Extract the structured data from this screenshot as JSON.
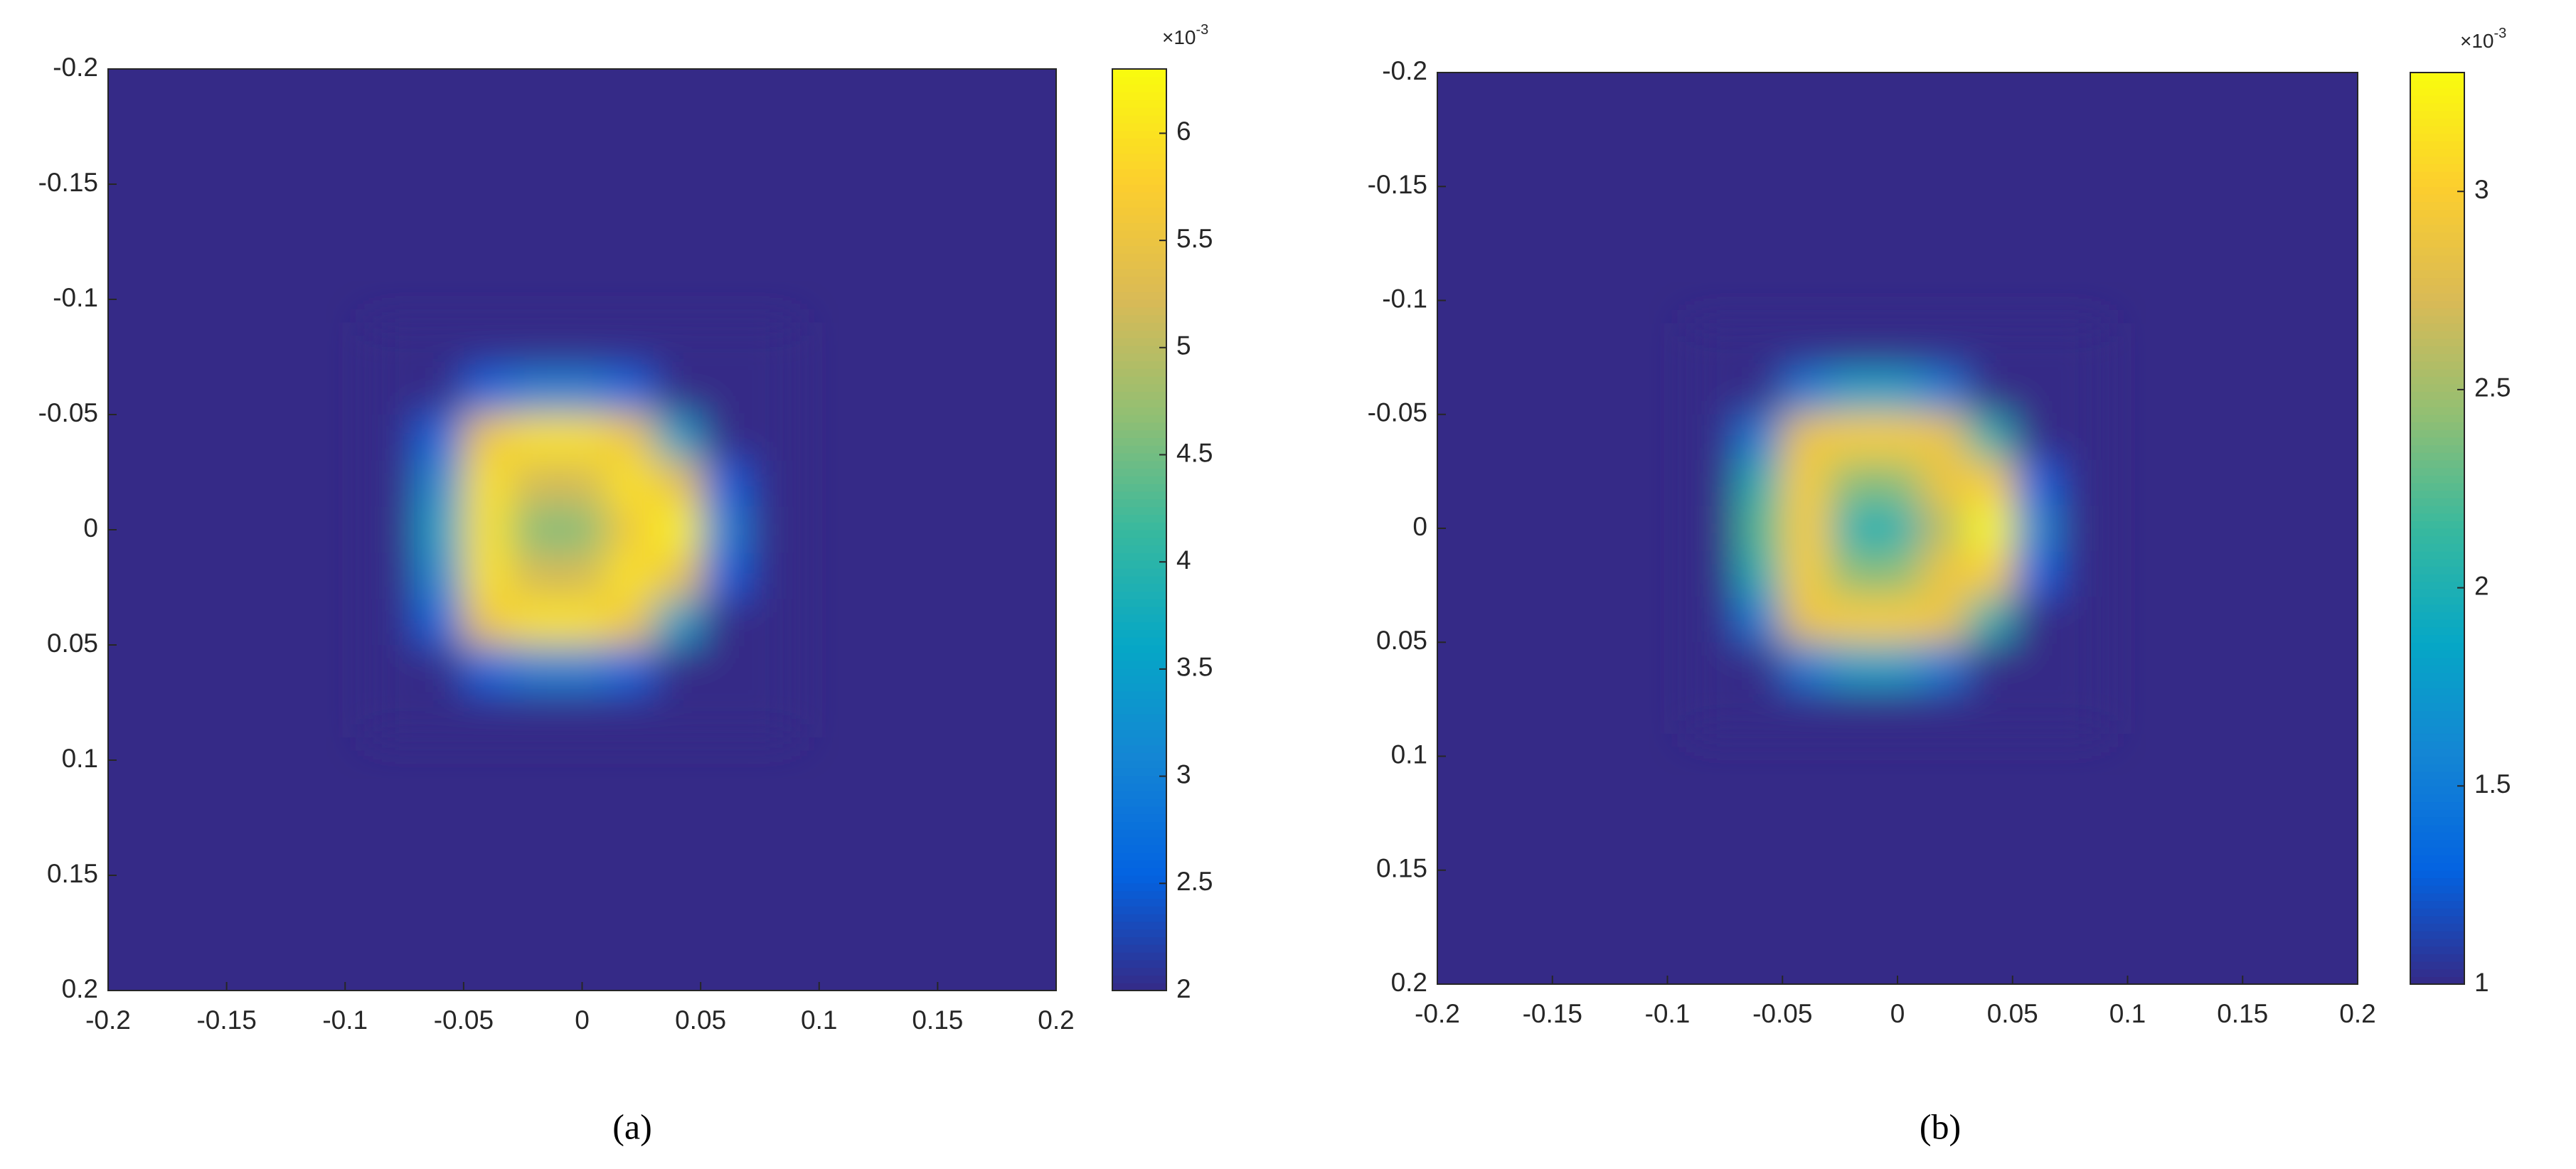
{
  "chart_data": [
    {
      "type": "heatmap",
      "caption": "(a)",
      "xlim": [
        -0.2,
        0.2
      ],
      "ylim": [
        -0.2,
        0.2
      ],
      "y_inverted": true,
      "xticks": [
        -0.2,
        -0.15,
        -0.1,
        -0.05,
        0,
        0.05,
        0.1,
        0.15,
        0.2
      ],
      "yticks": [
        -0.2,
        -0.15,
        -0.1,
        -0.05,
        0,
        0.05,
        0.1,
        0.15,
        0.2
      ],
      "x": [
        -0.08,
        -0.06,
        -0.04,
        -0.02,
        0,
        0.02,
        0.04,
        0.06,
        0.08
      ],
      "y": [
        -0.08,
        -0.06,
        -0.04,
        -0.02,
        0,
        0.02,
        0.04,
        0.06,
        0.08
      ],
      "z": [
        [
          2,
          2,
          2,
          2,
          2,
          2,
          2,
          2,
          2
        ],
        [
          2,
          2,
          2.6,
          3.0,
          3.0,
          2.6,
          2,
          2,
          2
        ],
        [
          2,
          2.6,
          5.6,
          6.0,
          6.0,
          5.6,
          3.5,
          2,
          2
        ],
        [
          2,
          3.2,
          6.0,
          5.2,
          5.2,
          6.0,
          5.5,
          2.5,
          2
        ],
        [
          2,
          3.5,
          6.0,
          4.6,
          4.6,
          5.6,
          6.2,
          3.0,
          2
        ],
        [
          2,
          3.2,
          6.0,
          5.2,
          5.2,
          6.0,
          5.5,
          2.5,
          2
        ],
        [
          2,
          2.6,
          5.6,
          6.0,
          6.0,
          5.6,
          3.5,
          2,
          2
        ],
        [
          2,
          2,
          2.6,
          3.0,
          3.0,
          2.6,
          2,
          2,
          2
        ],
        [
          2,
          2,
          2,
          2,
          2,
          2,
          2,
          2,
          2
        ]
      ],
      "clim": [
        2,
        6.3
      ],
      "cticks": [
        2,
        2.5,
        3,
        3.5,
        4,
        4.5,
        5,
        5.5,
        6
      ],
      "colorbar_multiplier": "×10",
      "colorbar_exponent": "-3",
      "colormap": [
        "#352a87",
        "#0363e1",
        "#1485d4",
        "#06a7c6",
        "#38b99e",
        "#92bf73",
        "#d9ba56",
        "#fcce2e",
        "#f9fb0e"
      ]
    },
    {
      "type": "heatmap",
      "caption": "(b)",
      "xlim": [
        -0.2,
        0.2
      ],
      "ylim": [
        -0.2,
        0.2
      ],
      "y_inverted": true,
      "xticks": [
        -0.2,
        -0.15,
        -0.1,
        -0.05,
        0,
        0.05,
        0.1,
        0.15,
        0.2
      ],
      "yticks": [
        -0.2,
        -0.15,
        -0.1,
        -0.05,
        0,
        0.05,
        0.1,
        0.15,
        0.2
      ],
      "x": [
        -0.08,
        -0.06,
        -0.04,
        -0.02,
        0,
        0.02,
        0.04,
        0.06,
        0.08
      ],
      "y": [
        -0.08,
        -0.06,
        -0.04,
        -0.02,
        0,
        0.02,
        0.04,
        0.06,
        0.08
      ],
      "z": [
        [
          1,
          1,
          1,
          1,
          1,
          1,
          1,
          1,
          1
        ],
        [
          1,
          1,
          1.5,
          1.8,
          1.8,
          1.5,
          1,
          1,
          1
        ],
        [
          1,
          1.5,
          2.9,
          3.0,
          3.0,
          2.9,
          2.0,
          1,
          1
        ],
        [
          1,
          2.0,
          3.0,
          2.4,
          2.4,
          2.9,
          3.0,
          1.3,
          1
        ],
        [
          1,
          2.2,
          3.0,
          2.0,
          2.0,
          2.6,
          3.3,
          1.6,
          1
        ],
        [
          1,
          2.0,
          3.0,
          2.4,
          2.4,
          2.9,
          3.0,
          1.3,
          1
        ],
        [
          1,
          1.5,
          2.9,
          3.0,
          3.0,
          2.9,
          2.0,
          1,
          1
        ],
        [
          1,
          1,
          1.5,
          1.8,
          1.8,
          1.5,
          1,
          1,
          1
        ],
        [
          1,
          1,
          1,
          1,
          1,
          1,
          1,
          1,
          1
        ]
      ],
      "clim": [
        1,
        3.3
      ],
      "cticks": [
        1,
        1.5,
        2,
        2.5,
        3
      ],
      "colorbar_multiplier": "×10",
      "colorbar_exponent": "-3",
      "colormap": [
        "#352a87",
        "#0363e1",
        "#1485d4",
        "#06a7c6",
        "#38b99e",
        "#92bf73",
        "#d9ba56",
        "#fcce2e",
        "#f9fb0e"
      ]
    }
  ]
}
